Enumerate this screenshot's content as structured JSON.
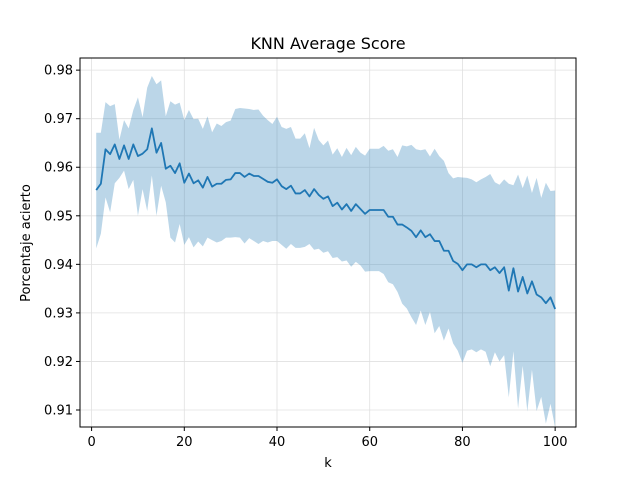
{
  "chart_data": {
    "type": "line",
    "title": "KNN Average Score",
    "xlabel": "k",
    "ylabel": "Porcentaje acierto",
    "xlim": [
      -2.5,
      104.5
    ],
    "ylim": [
      0.9065,
      0.9825
    ],
    "xticks": [
      0,
      20,
      40,
      60,
      80,
      100
    ],
    "yticks": [
      0.91,
      0.92,
      0.93,
      0.94,
      0.95,
      0.96,
      0.97,
      0.98
    ],
    "grid": true,
    "colors": {
      "line": "#1f77b4",
      "band": "#1f77b4",
      "band_opacity": 0.3,
      "grid": "#e0e0e0"
    },
    "series": [
      {
        "k": [
          1,
          2,
          3,
          4,
          5,
          6,
          7,
          8,
          9,
          10,
          11,
          12,
          13,
          14,
          15,
          16,
          17,
          18,
          19,
          20,
          21,
          22,
          23,
          24,
          25,
          26,
          27,
          28,
          29,
          30,
          31,
          32,
          33,
          34,
          35,
          36,
          37,
          38,
          39,
          40,
          41,
          42,
          43,
          44,
          45,
          46,
          47,
          48,
          49,
          50,
          51,
          52,
          53,
          54,
          55,
          56,
          57,
          58,
          59,
          60,
          61,
          62,
          63,
          64,
          65,
          66,
          67,
          68,
          69,
          70,
          71,
          72,
          73,
          74,
          75,
          76,
          77,
          78,
          79,
          80,
          81,
          82,
          83,
          84,
          85,
          86,
          87,
          88,
          89,
          90,
          91,
          92,
          93,
          94,
          95,
          96,
          97,
          98,
          99,
          100
        ],
        "mean": [
          0.9553,
          0.9566,
          0.9637,
          0.9627,
          0.9647,
          0.9617,
          0.9645,
          0.9617,
          0.9647,
          0.9623,
          0.9628,
          0.9637,
          0.968,
          0.963,
          0.965,
          0.9597,
          0.9603,
          0.9588,
          0.9608,
          0.9568,
          0.9587,
          0.9567,
          0.9573,
          0.9558,
          0.958,
          0.956,
          0.9566,
          0.9566,
          0.9574,
          0.9575,
          0.9588,
          0.9588,
          0.958,
          0.9587,
          0.9582,
          0.9582,
          0.9576,
          0.957,
          0.9568,
          0.9575,
          0.9561,
          0.9555,
          0.9562,
          0.9546,
          0.9546,
          0.9553,
          0.954,
          0.9555,
          0.9543,
          0.9535,
          0.954,
          0.952,
          0.9527,
          0.9513,
          0.9524,
          0.951,
          0.9524,
          0.9514,
          0.9504,
          0.9512,
          0.9512,
          0.9512,
          0.9512,
          0.9498,
          0.9498,
          0.9482,
          0.9482,
          0.9476,
          0.9469,
          0.9456,
          0.947,
          0.9456,
          0.9462,
          0.9448,
          0.9448,
          0.9428,
          0.9428,
          0.9407,
          0.9401,
          0.9388,
          0.94,
          0.94,
          0.9394,
          0.94,
          0.94,
          0.9388,
          0.9394,
          0.9382,
          0.9394,
          0.9346,
          0.9392,
          0.9344,
          0.9374,
          0.934,
          0.9365,
          0.9338,
          0.9332,
          0.932,
          0.9332,
          0.9308
        ],
        "lower": [
          0.9433,
          0.9463,
          0.9538,
          0.9507,
          0.9567,
          0.9578,
          0.9593,
          0.9555,
          0.9574,
          0.95,
          0.9555,
          0.951,
          0.9583,
          0.95,
          0.9562,
          0.9528,
          0.9455,
          0.9445,
          0.9483,
          0.944,
          0.9456,
          0.9435,
          0.9447,
          0.9437,
          0.9455,
          0.945,
          0.9445,
          0.9448,
          0.9455,
          0.9455,
          0.9456,
          0.9455,
          0.9443,
          0.9454,
          0.9448,
          0.9442,
          0.9448,
          0.9445,
          0.9448,
          0.9448,
          0.944,
          0.9432,
          0.9442,
          0.9434,
          0.9434,
          0.9436,
          0.9442,
          0.943,
          0.9432,
          0.9424,
          0.9427,
          0.9413,
          0.9415,
          0.9406,
          0.9408,
          0.9395,
          0.9405,
          0.9398,
          0.9385,
          0.9386,
          0.9386,
          0.9386,
          0.938,
          0.9363,
          0.9359,
          0.9343,
          0.9319,
          0.9309,
          0.9291,
          0.9275,
          0.9305,
          0.9275,
          0.9302,
          0.9258,
          0.9273,
          0.9243,
          0.9268,
          0.9237,
          0.9222,
          0.9197,
          0.9222,
          0.9225,
          0.9219,
          0.9225,
          0.922,
          0.919,
          0.9219,
          0.92,
          0.9213,
          0.9126,
          0.9221,
          0.9103,
          0.9191,
          0.9097,
          0.9183,
          0.9098,
          0.9127,
          0.9072,
          0.9113,
          0.9064
        ],
        "upper": [
          0.9671,
          0.9671,
          0.9734,
          0.9726,
          0.973,
          0.9657,
          0.9697,
          0.968,
          0.9718,
          0.9744,
          0.9703,
          0.9764,
          0.9788,
          0.9771,
          0.9779,
          0.9705,
          0.9736,
          0.9729,
          0.9733,
          0.9697,
          0.9718,
          0.9699,
          0.97,
          0.9679,
          0.9705,
          0.9672,
          0.969,
          0.9685,
          0.9693,
          0.9696,
          0.972,
          0.9722,
          0.9721,
          0.972,
          0.9718,
          0.9719,
          0.9706,
          0.9697,
          0.9689,
          0.9704,
          0.9683,
          0.9679,
          0.9683,
          0.9659,
          0.9659,
          0.967,
          0.9639,
          0.9681,
          0.9656,
          0.9645,
          0.9655,
          0.9626,
          0.9639,
          0.9621,
          0.964,
          0.9625,
          0.9642,
          0.963,
          0.9624,
          0.9638,
          0.9638,
          0.9638,
          0.9644,
          0.9634,
          0.9637,
          0.9621,
          0.9645,
          0.9643,
          0.9646,
          0.9637,
          0.9635,
          0.9637,
          0.9622,
          0.9638,
          0.9623,
          0.9613,
          0.9588,
          0.9577,
          0.958,
          0.9579,
          0.9578,
          0.9575,
          0.9569,
          0.9575,
          0.958,
          0.9586,
          0.9569,
          0.9564,
          0.9575,
          0.9566,
          0.9563,
          0.9585,
          0.9557,
          0.9583,
          0.9547,
          0.9578,
          0.9537,
          0.9568,
          0.9551,
          0.9552
        ]
      }
    ]
  }
}
